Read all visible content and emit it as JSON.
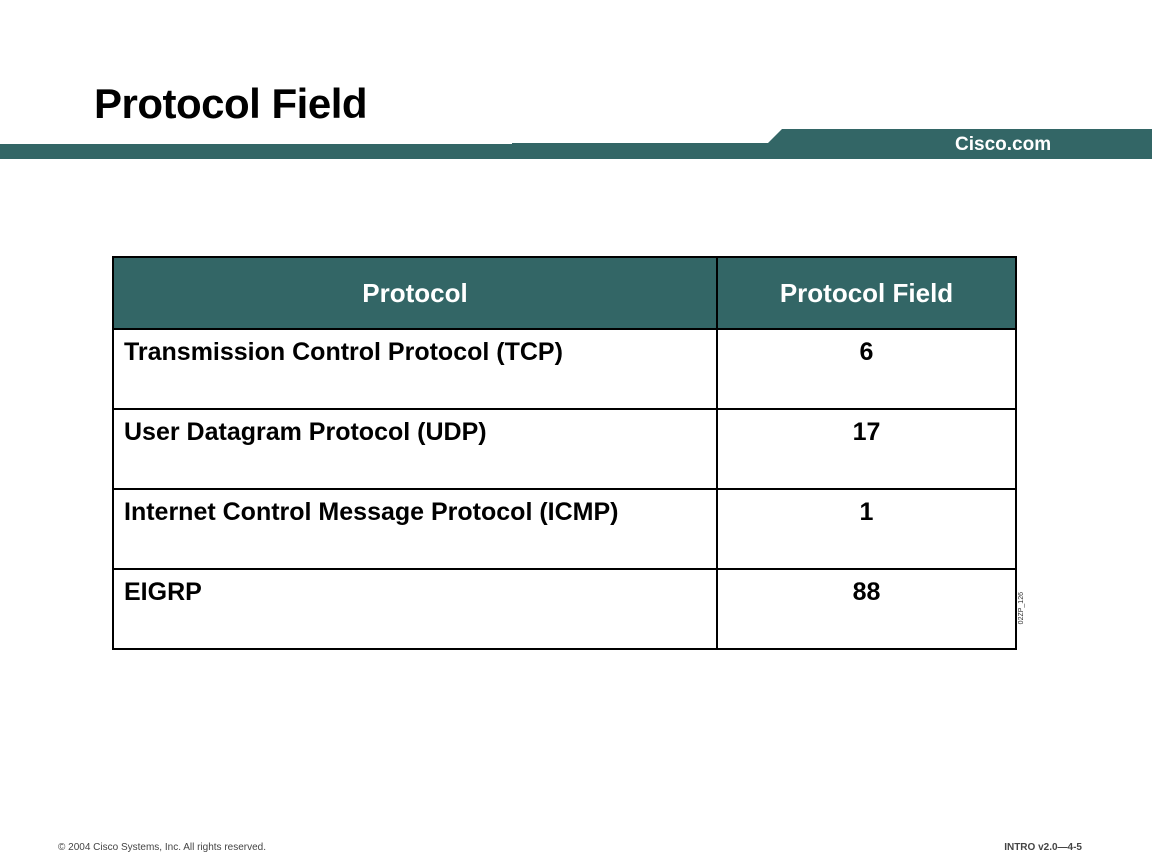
{
  "slide": {
    "title": "Protocol Field",
    "brand": "Cisco.com",
    "slide_code": "02ZP_126",
    "copyright": "© 2004 Cisco Systems, Inc. All rights reserved.",
    "course": "INTRO v2.0—4-5",
    "accent_color": "#336666"
  },
  "table": {
    "headers": [
      "Protocol",
      "Protocol Field"
    ],
    "rows": [
      {
        "protocol": "Transmission Control Protocol (TCP)",
        "field": "6"
      },
      {
        "protocol": "User Datagram Protocol (UDP)",
        "field": "17"
      },
      {
        "protocol": "Internet Control Message Protocol (ICMP)",
        "field": "1"
      },
      {
        "protocol": "EIGRP",
        "field": "88"
      }
    ]
  }
}
